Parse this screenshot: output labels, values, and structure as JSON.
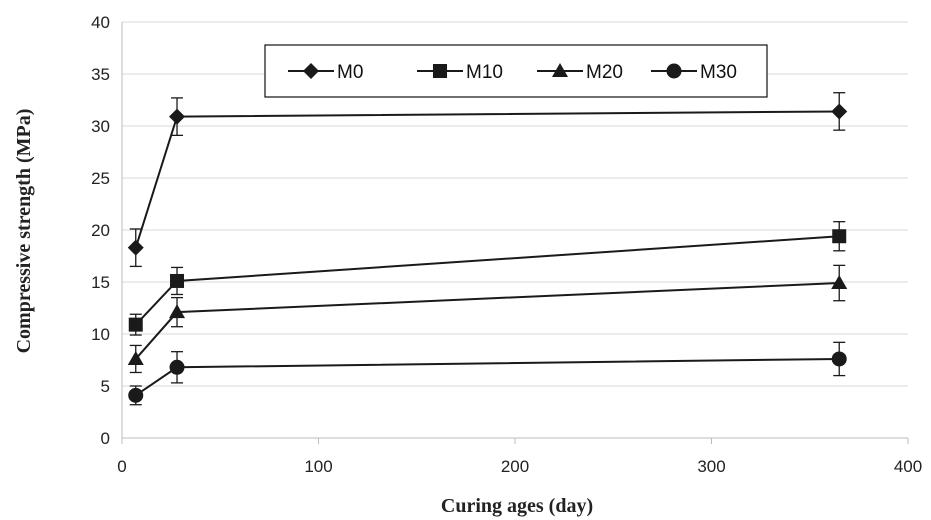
{
  "chart_data": {
    "type": "line",
    "xlabel": "Curing ages (day)",
    "ylabel": "Compressive strength (MPa)",
    "xlim": [
      0,
      400
    ],
    "ylim": [
      0,
      40
    ],
    "xticks": [
      0,
      100,
      200,
      300,
      400
    ],
    "yticks": [
      0,
      5,
      10,
      15,
      20,
      25,
      30,
      35,
      40
    ],
    "x": [
      7,
      28,
      365
    ],
    "grid": "horizontal",
    "legend_position": "top-center",
    "series": [
      {
        "name": "M0",
        "marker": "diamond",
        "values": [
          18.3,
          30.9,
          31.4
        ],
        "error": [
          1.8,
          1.8,
          1.8
        ]
      },
      {
        "name": "M10",
        "marker": "square",
        "values": [
          10.9,
          15.1,
          19.4
        ],
        "error": [
          1.0,
          1.3,
          1.4
        ]
      },
      {
        "name": "M20",
        "marker": "triangle",
        "values": [
          7.6,
          12.1,
          14.9
        ],
        "error": [
          1.3,
          1.4,
          1.7
        ]
      },
      {
        "name": "M30",
        "marker": "circle",
        "values": [
          4.1,
          6.8,
          7.6
        ],
        "error": [
          0.9,
          1.5,
          1.6
        ]
      }
    ],
    "colors": {
      "line": "#1a1a1a",
      "grid": "#d9d9d9",
      "axis": "#bdbdbd"
    }
  }
}
